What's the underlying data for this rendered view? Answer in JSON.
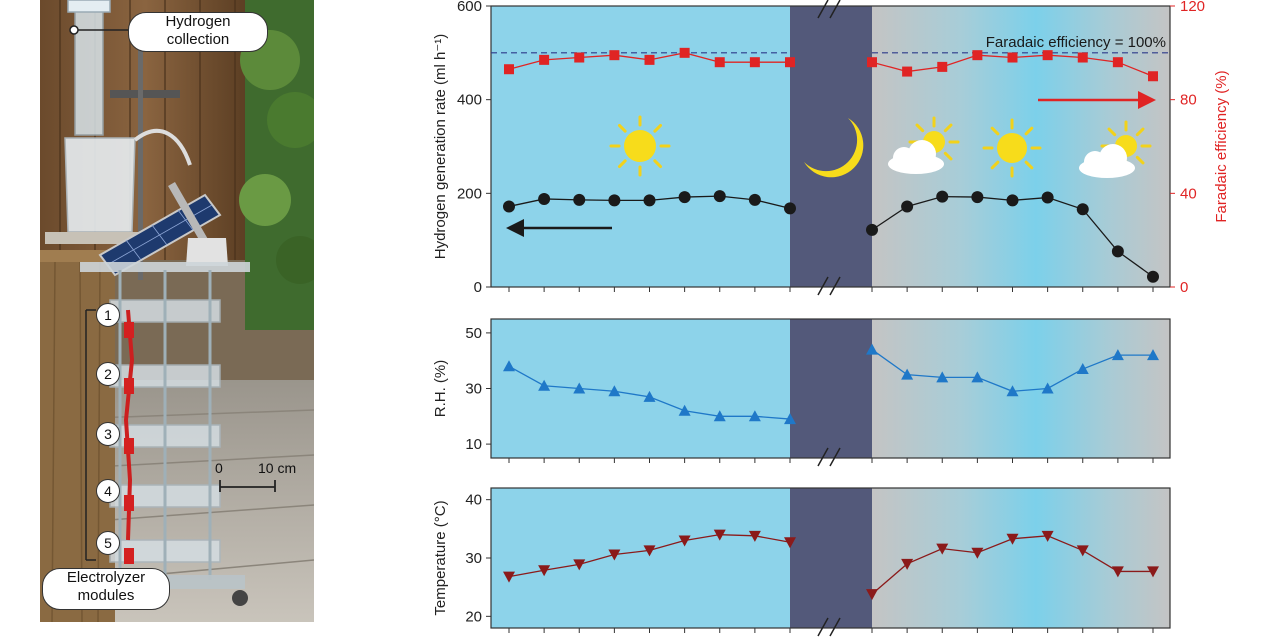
{
  "photo": {
    "callout_top": [
      "Hydrogen",
      "collection"
    ],
    "callout_bottom": [
      "Electrolyzer",
      "modules"
    ],
    "module_numbers": [
      "1",
      "2",
      "3",
      "4",
      "5"
    ],
    "scale_bar": {
      "start": "0",
      "end": "10 cm"
    }
  },
  "colors": {
    "day_bg": "#8dd3ea",
    "night_bg": "#53597a",
    "grey_bg": "#c4c4c4",
    "rate": "#1a1a1a",
    "faradaic": "#e02424",
    "rh": "#1f78c8",
    "temperature": "#8b1a1a"
  },
  "chart_data": [
    {
      "type": "line",
      "panel": "hydrogen",
      "ylabel": "Hydrogen generation rate (ml h⁻¹)",
      "ylim": [
        0,
        600
      ],
      "yticks": [
        "0",
        "200",
        "400",
        "600"
      ],
      "y2label": "Faradaic efficiency (%)",
      "y2lim": [
        0,
        120
      ],
      "y2ticks": [
        "0",
        "40",
        "80",
        "120"
      ],
      "reference_line": {
        "value": 100,
        "axis": "right",
        "label": "Faradaic efficiency = 100%"
      },
      "series": [
        {
          "axis": "left",
          "marker": "circle",
          "day1": [
            [
              9,
              172
            ],
            [
              9.5,
              188
            ],
            [
              10,
              186
            ],
            [
              10.5,
              185
            ],
            [
              11,
              185
            ],
            [
              11.5,
              192
            ],
            [
              12,
              194
            ],
            [
              12.5,
              186
            ],
            [
              13,
              168
            ]
          ],
          "day2": [
            [
              9,
              122
            ],
            [
              9.5,
              172
            ],
            [
              10,
              193
            ],
            [
              10.5,
              192
            ],
            [
              11,
              185
            ],
            [
              11.5,
              191
            ],
            [
              12,
              166
            ],
            [
              12.5,
              76
            ],
            [
              13,
              22
            ]
          ]
        },
        {
          "axis": "right",
          "marker": "square",
          "day1": [
            [
              9,
              93
            ],
            [
              9.5,
              97
            ],
            [
              10,
              98
            ],
            [
              10.5,
              99
            ],
            [
              11,
              97
            ],
            [
              11.5,
              100
            ],
            [
              12,
              96
            ],
            [
              12.5,
              96
            ],
            [
              13,
              96
            ]
          ],
          "day2": [
            [
              9,
              96
            ],
            [
              9.5,
              92
            ],
            [
              10,
              94
            ],
            [
              10.5,
              99
            ],
            [
              11,
              98
            ],
            [
              11.5,
              99
            ],
            [
              12,
              98
            ],
            [
              12.5,
              96
            ],
            [
              13,
              90
            ]
          ]
        }
      ]
    },
    {
      "type": "line",
      "panel": "humidity",
      "ylabel": "R.H. (%)",
      "ylim": [
        5,
        55
      ],
      "yticks": [
        "10",
        "30",
        "50"
      ],
      "series": [
        {
          "marker": "triangle-up",
          "day1": [
            [
              9,
              38
            ],
            [
              9.5,
              31
            ],
            [
              10,
              30
            ],
            [
              10.5,
              29
            ],
            [
              11,
              27
            ],
            [
              11.5,
              22
            ],
            [
              12,
              20
            ],
            [
              12.5,
              20
            ],
            [
              13,
              19
            ]
          ],
          "day2": [
            [
              9,
              44
            ],
            [
              9.5,
              35
            ],
            [
              10,
              34
            ],
            [
              10.5,
              34
            ],
            [
              11,
              29
            ],
            [
              11.5,
              30
            ],
            [
              12,
              37
            ],
            [
              12.5,
              42
            ],
            [
              13,
              42
            ]
          ]
        }
      ]
    },
    {
      "type": "line",
      "panel": "temperature",
      "ylabel": "Temperature (°C)",
      "ylim": [
        18,
        42
      ],
      "yticks": [
        "20",
        "30",
        "40"
      ],
      "series": [
        {
          "marker": "triangle-down",
          "day1": [
            [
              9,
              26.8
            ],
            [
              9.5,
              27.9
            ],
            [
              10,
              28.9
            ],
            [
              10.5,
              30.6
            ],
            [
              11,
              31.3
            ],
            [
              11.5,
              33
            ],
            [
              12,
              34
            ],
            [
              12.5,
              33.8
            ],
            [
              13,
              32.7
            ]
          ],
          "day2": [
            [
              9,
              23.8
            ],
            [
              9.5,
              29
            ],
            [
              10,
              31.6
            ],
            [
              10.5,
              30.9
            ],
            [
              11,
              33.3
            ],
            [
              11.5,
              33.8
            ],
            [
              12,
              31.3
            ],
            [
              12.5,
              27.7
            ],
            [
              13,
              27.7
            ]
          ]
        }
      ]
    }
  ]
}
